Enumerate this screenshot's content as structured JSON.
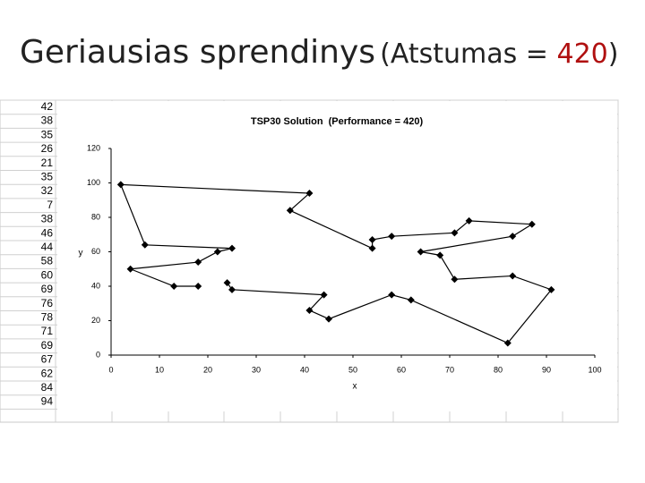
{
  "title": {
    "main": "Geriausias sprendinys",
    "open": "(Atstumas = ",
    "value": "420",
    "close": ")"
  },
  "sheet_column": [
    "42",
    "38",
    "35",
    "26",
    "21",
    "35",
    "32",
    "7",
    "38",
    "46",
    "44",
    "58",
    "60",
    "69",
    "76",
    "78",
    "71",
    "69",
    "67",
    "62",
    "84",
    "94"
  ],
  "chart_data": {
    "type": "line",
    "title": "TSP30 Solution  (Performance = 420)",
    "x_label": "x",
    "y_label": "y",
    "color": "#000000",
    "x": [
      18,
      13,
      4,
      18,
      22,
      25,
      7,
      2,
      41,
      37,
      54,
      54,
      58,
      71,
      74,
      87,
      83,
      64,
      68,
      71,
      83,
      91,
      82,
      62,
      58,
      45,
      41,
      44,
      25,
      24
    ],
    "values": [
      40,
      40,
      50,
      54,
      60,
      62,
      64,
      99,
      94,
      84,
      62,
      67,
      69,
      71,
      78,
      76,
      69,
      60,
      58,
      44,
      46,
      38,
      7,
      32,
      35,
      21,
      26,
      35,
      38,
      42
    ],
    "xlim": [
      0,
      100
    ],
    "xticks": [
      0,
      10,
      20,
      30,
      40,
      50,
      60,
      70,
      80,
      90,
      100
    ],
    "ylim": [
      0,
      120
    ],
    "yticks": [
      0,
      20,
      40,
      60,
      80,
      100,
      120
    ]
  }
}
